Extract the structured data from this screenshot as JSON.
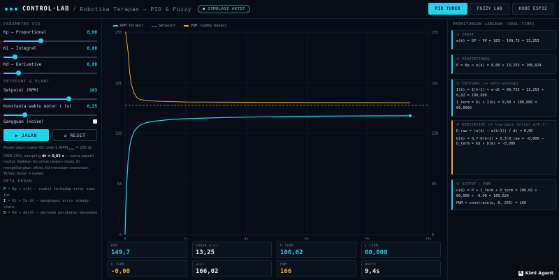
{
  "header": {
    "brand": "CONTROL·LAB",
    "separator": "/",
    "subtitle": "Robotika Terapan — PID & Fuzzy",
    "sim_badge": "● SIMULASI AKTIF",
    "tabs": [
      "PID TUNER",
      "FUZZY LAB",
      "KODE ESP32"
    ],
    "active_tab": 0
  },
  "left": {
    "section_params": "PARAMETER PID",
    "kp": {
      "label": "Kp — Proportional",
      "value": "8,00",
      "fraction": 0.4
    },
    "ki": {
      "label": "Ki — Integral",
      "value": "0,60",
      "fraction": 0.12
    },
    "kd": {
      "label": "Kd — Derivative",
      "value": "0,80",
      "fraction": 0.16
    },
    "section_setpoint": "SETPOINT & PLANT",
    "setpoint": {
      "label": "Setpoint (RPM)",
      "value": "163",
      "fraction": 0.7
    },
    "tau": {
      "label": "Konstanta waktu motor τ (s)",
      "value": "0,25",
      "fraction": 0.23
    },
    "noise": {
      "label": "Gangguan (noise)"
    },
    "run_label": "▶ JALAN",
    "reset_label": "↺ RESET",
    "description_parts": [
      "Model plant: motor DC orde-1 (RPM",
      "max",
      " = 230 @ PWM 255), sampling ",
      "dt = 0,02 s",
      " — sama seperti modul. Naikkan Kp untuk respon cepat, Ki menghilangkan offset, Kd meredam overshoot. Terlalu besar → osilasi."
    ],
    "map_title": "PETA PERAN",
    "map_lines": [
      {
        "key": "P",
        "text": " = Kp × e(k) — reaksi terhadap error saat ini",
        "color": "#22d3ee"
      },
      {
        "key": "I",
        "text": " = Ki × Σe·dt — menghapus error steady-state",
        "color": "#c9d4e0"
      },
      {
        "key": "D",
        "text": " = Kd × Δe/dt — meredam perubahan mendadak",
        "color": "#f5a524"
      }
    ]
  },
  "chart_data": {
    "type": "line",
    "legend": [
      "RPM Terukur",
      "Setpoint",
      "PWM (sumbu kanan)"
    ],
    "colors": {
      "rpm": "#22d3ee",
      "setpoint": "#8aa0b4",
      "pwm": "#f5a524"
    },
    "x_ticks": [
      "0",
      "2s",
      "4s",
      "6s",
      "8s",
      "10s"
    ],
    "xlim": [
      0,
      10
    ],
    "y_left_ticks": [
      "0",
      "64",
      "128",
      "191",
      "255"
    ],
    "ylim_left": [
      0,
      255
    ],
    "y_right_ticks": [
      "0",
      "64",
      "128",
      "191",
      "255"
    ],
    "ylim_right": [
      0,
      255
    ],
    "setpoint": 163,
    "rpm": {
      "x": [
        0,
        0.02,
        0.05,
        0.1,
        0.15,
        0.2,
        0.3,
        0.4,
        0.5,
        0.7,
        1.0,
        1.5,
        2.0,
        3.0,
        4.0,
        5.0,
        6.0,
        7.0,
        8.0,
        9.0,
        9.4
      ],
      "y": [
        0,
        30,
        62,
        93,
        110,
        120,
        130,
        135,
        138,
        141,
        143,
        145,
        146,
        147.2,
        148,
        148.5,
        149,
        149.3,
        149.5,
        149.6,
        149.7
      ]
    },
    "pwm": {
      "x": [
        0,
        0.02,
        0.05,
        0.1,
        0.15,
        0.2,
        0.3,
        0.4,
        0.5,
        0.7,
        1.0,
        1.5,
        2.0,
        3.0,
        4.0,
        5.0,
        6.0,
        7.0,
        8.0,
        9.0,
        9.4
      ],
      "y": [
        255,
        255,
        245,
        230,
        205,
        190,
        178,
        172,
        170,
        169,
        168,
        167.5,
        167,
        166.8,
        166.6,
        166.5,
        166.4,
        166.3,
        166.3,
        166.2,
        166
      ]
    }
  },
  "cards": [
    {
      "label": "RPM",
      "value": "149,7",
      "color": "#22d3ee"
    },
    {
      "label": "ERROR e(k)",
      "value": "13,25",
      "color": "#e6edf4"
    },
    {
      "label": "P TERM",
      "value": "106,02",
      "color": "#22d3ee"
    },
    {
      "label": "I TERM",
      "value": "60,000",
      "color": "#22d3ee"
    },
    {
      "label": "D TERM",
      "value": "-0,00",
      "color": "#f5a524"
    },
    {
      "label": "u(k)",
      "value": "166,02",
      "color": "#e6edf4"
    },
    {
      "label": "PWM",
      "value": "166",
      "color": "#f5a524"
    },
    {
      "label": "WAKTU",
      "value": "9,4s",
      "color": "#e6edf4"
    }
  ],
  "right": {
    "title": "PERHITUNGAN LANGKAH (REAL-TIME)",
    "steps": [
      {
        "title": "① ERROR",
        "lines": [
          "e(k) = SP − PV = 163 − 149,75 = 13,253"
        ],
        "accent": "cyan"
      },
      {
        "title": "② PROPORTIONAL",
        "lines": [
          "P = Kp × e(k) = 8,00 × 13,253 = 106,024"
        ],
        "accent": "cyan"
      },
      {
        "title": "③ INTEGRAL (+ anti-windup)",
        "lines": [
          "I(k) = I(k−1) + e·dt = 99,735 + 13,253 × 0,02 = 100,000",
          "I_term = Ki × I(k) = 0,60 × 100,000 = 60,0000"
        ],
        "accent": "cyan"
      },
      {
        "title": "④ DERIVATIVE (+ low-pass filter α=0,7)",
        "lines": [
          "D_raw = (e(k) − e(k−1)) / dt = 0,00",
          "D(k) = 0,7·D(k−1) + 0,3·D_raw = -0,000 → D_term = Kd × D(k) = -0,000"
        ],
        "accent": "orange"
      },
      {
        "title": "⑤ OUTPUT → PWM",
        "lines": [
          "u(k) = P + I_term + D_term = 106,02 + 60,000 + -0,00 = 166,024",
          "PWM = constrain(u, 0, 255) = 166"
        ],
        "accent": "cyan"
      }
    ]
  },
  "watermark": {
    "brand": "Kimi Agent",
    "mark": "K"
  }
}
